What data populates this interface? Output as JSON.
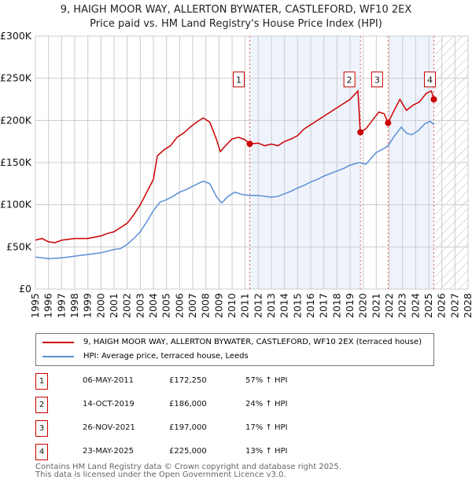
{
  "chart_data": {
    "type": "line",
    "title": "9, HAIGH MOOR WAY, ALLERTON BYWATER, CASTLEFORD, WF10 2EX",
    "subtitle": "Price paid vs. HM Land Registry's House Price Index (HPI)",
    "xlim": [
      1995,
      2028
    ],
    "ylim": [
      0,
      300000
    ],
    "yticks": [
      {
        "v": 0,
        "label": "£0"
      },
      {
        "v": 50000,
        "label": "£50K"
      },
      {
        "v": 100000,
        "label": "£100K"
      },
      {
        "v": 150000,
        "label": "£150K"
      },
      {
        "v": 200000,
        "label": "£200K"
      },
      {
        "v": 250000,
        "label": "£250K"
      },
      {
        "v": 300000,
        "label": "£300K"
      }
    ],
    "xticks": [
      "1995",
      "1996",
      "1997",
      "1998",
      "1999",
      "2000",
      "2001",
      "2002",
      "2003",
      "2004",
      "2005",
      "2006",
      "2007",
      "2008",
      "2009",
      "2010",
      "2011",
      "2012",
      "2013",
      "2014",
      "2015",
      "2016",
      "2017",
      "2018",
      "2019",
      "2020",
      "2021",
      "2022",
      "2023",
      "2024",
      "2025",
      "2026",
      "2027",
      "2028"
    ],
    "forecast_start": 2025.5,
    "series": [
      {
        "name": "9, HAIGH MOOR WAY, ALLERTON BYWATER, CASTLEFORD, WF10 2EX (terraced house)",
        "color": "#cc0000",
        "points": [
          [
            1995,
            58000
          ],
          [
            1995.5,
            60000
          ],
          [
            1996,
            56000
          ],
          [
            1996.5,
            55000
          ],
          [
            1997,
            58000
          ],
          [
            1998,
            60000
          ],
          [
            1999,
            60000
          ],
          [
            2000,
            63000
          ],
          [
            2000.5,
            66000
          ],
          [
            2001,
            68000
          ],
          [
            2001.5,
            73000
          ],
          [
            2002,
            78000
          ],
          [
            2002.5,
            88000
          ],
          [
            2003,
            100000
          ],
          [
            2003.5,
            115000
          ],
          [
            2004,
            130000
          ],
          [
            2004.3,
            158000
          ],
          [
            2004.8,
            165000
          ],
          [
            2005.3,
            170000
          ],
          [
            2005.8,
            180000
          ],
          [
            2006.3,
            185000
          ],
          [
            2006.8,
            192000
          ],
          [
            2007.3,
            198000
          ],
          [
            2007.8,
            203000
          ],
          [
            2008.3,
            198000
          ],
          [
            2008.8,
            178000
          ],
          [
            2009.1,
            163000
          ],
          [
            2009.5,
            170000
          ],
          [
            2010,
            178000
          ],
          [
            2010.5,
            180000
          ],
          [
            2011,
            177000
          ],
          [
            2011.35,
            172250
          ],
          [
            2012,
            173000
          ],
          [
            2012.5,
            170000
          ],
          [
            2013,
            172000
          ],
          [
            2013.5,
            170000
          ],
          [
            2014,
            175000
          ],
          [
            2014.5,
            178000
          ],
          [
            2015,
            182000
          ],
          [
            2015.5,
            190000
          ],
          [
            2016,
            195000
          ],
          [
            2016.5,
            200000
          ],
          [
            2017,
            205000
          ],
          [
            2017.5,
            210000
          ],
          [
            2018,
            215000
          ],
          [
            2018.5,
            220000
          ],
          [
            2019,
            225000
          ],
          [
            2019.6,
            235000
          ],
          [
            2019.78,
            186000
          ],
          [
            2020.2,
            190000
          ],
          [
            2020.7,
            200000
          ],
          [
            2021.2,
            210000
          ],
          [
            2021.6,
            208000
          ],
          [
            2021.9,
            197000
          ],
          [
            2022.3,
            210000
          ],
          [
            2022.8,
            225000
          ],
          [
            2023.3,
            212000
          ],
          [
            2023.8,
            218000
          ],
          [
            2024.3,
            222000
          ],
          [
            2024.8,
            232000
          ],
          [
            2025.2,
            235000
          ],
          [
            2025.39,
            225000
          ]
        ]
      },
      {
        "name": "HPI: Average price, terraced house, Leeds",
        "color": "#5b8fd6",
        "points": [
          [
            1995,
            38000
          ],
          [
            1995.5,
            37000
          ],
          [
            1996,
            36000
          ],
          [
            1997,
            37000
          ],
          [
            1998,
            39000
          ],
          [
            1999,
            41000
          ],
          [
            2000,
            43000
          ],
          [
            2001,
            47000
          ],
          [
            2001.5,
            48000
          ],
          [
            2002,
            53000
          ],
          [
            2002.5,
            60000
          ],
          [
            2003,
            68000
          ],
          [
            2003.5,
            80000
          ],
          [
            2004,
            93000
          ],
          [
            2004.5,
            103000
          ],
          [
            2005,
            106000
          ],
          [
            2005.5,
            110000
          ],
          [
            2006,
            115000
          ],
          [
            2006.5,
            118000
          ],
          [
            2007,
            122000
          ],
          [
            2007.8,
            128000
          ],
          [
            2008.3,
            125000
          ],
          [
            2008.8,
            110000
          ],
          [
            2009.2,
            102000
          ],
          [
            2009.7,
            110000
          ],
          [
            2010.2,
            115000
          ],
          [
            2010.8,
            112000
          ],
          [
            2011.4,
            111000
          ],
          [
            2012,
            111000
          ],
          [
            2012.5,
            110000
          ],
          [
            2013,
            109000
          ],
          [
            2013.5,
            110000
          ],
          [
            2014,
            113000
          ],
          [
            2014.5,
            116000
          ],
          [
            2015,
            120000
          ],
          [
            2015.5,
            123000
          ],
          [
            2016,
            127000
          ],
          [
            2016.5,
            130000
          ],
          [
            2017,
            134000
          ],
          [
            2017.5,
            137000
          ],
          [
            2018,
            140000
          ],
          [
            2018.5,
            143000
          ],
          [
            2019,
            147000
          ],
          [
            2019.7,
            150000
          ],
          [
            2020.2,
            148000
          ],
          [
            2020.6,
            155000
          ],
          [
            2021,
            162000
          ],
          [
            2021.5,
            166000
          ],
          [
            2021.9,
            170000
          ],
          [
            2022.4,
            182000
          ],
          [
            2022.9,
            192000
          ],
          [
            2023.3,
            185000
          ],
          [
            2023.7,
            183000
          ],
          [
            2024.2,
            188000
          ],
          [
            2024.7,
            196000
          ],
          [
            2025.1,
            199000
          ],
          [
            2025.4,
            195000
          ]
        ]
      }
    ],
    "sales": [
      {
        "n": "1",
        "x": 2011.35,
        "y": 172250,
        "date": "06-MAY-2011",
        "price": "£172,250",
        "hpi": "57% ↑ HPI"
      },
      {
        "n": "2",
        "x": 2019.79,
        "y": 186000,
        "date": "14-OCT-2019",
        "price": "£186,000",
        "hpi": "24% ↑ HPI"
      },
      {
        "n": "3",
        "x": 2021.9,
        "y": 197000,
        "date": "26-NOV-2021",
        "price": "£197,000",
        "hpi": "17% ↑ HPI"
      },
      {
        "n": "4",
        "x": 2025.39,
        "y": 225000,
        "date": "23-MAY-2025",
        "price": "£225,000",
        "hpi": "13% ↑ HPI"
      }
    ]
  },
  "footer": {
    "line1": "Contains HM Land Registry data © Crown copyright and database right 2025.",
    "line2": "This data is licensed under the Open Government Licence v3.0."
  }
}
